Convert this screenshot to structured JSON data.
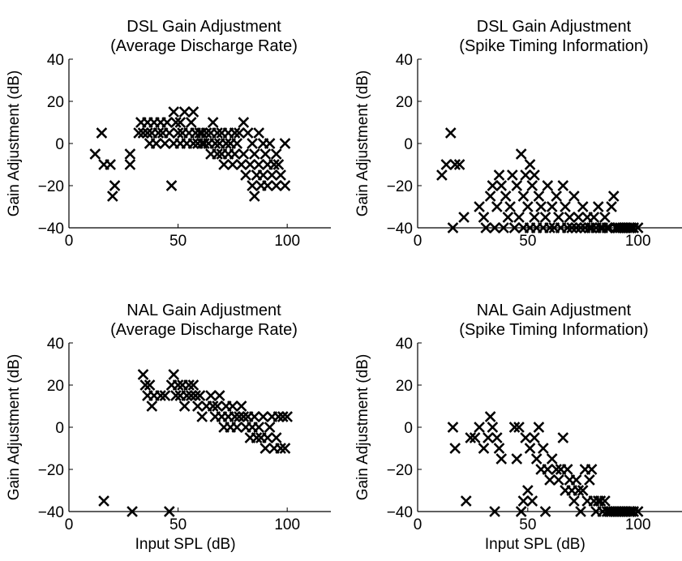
{
  "chart_data": [
    {
      "type": "scatter",
      "title": [
        "DSL Gain Adjustment",
        "(Average Discharge Rate)"
      ],
      "xlabel": "",
      "ylabel": "Gain Adjustment (dB)",
      "xlim": [
        0,
        120
      ],
      "ylim": [
        -40,
        40
      ],
      "xticks": [
        0,
        50,
        100
      ],
      "yticks": [
        -40,
        -20,
        0,
        20,
        40
      ],
      "marker": "x",
      "points": [
        [
          12,
          -5
        ],
        [
          15,
          5
        ],
        [
          16,
          -10
        ],
        [
          19,
          -10
        ],
        [
          20,
          -25
        ],
        [
          21,
          -20
        ],
        [
          28,
          -5
        ],
        [
          28,
          -10
        ],
        [
          32,
          5
        ],
        [
          33,
          10
        ],
        [
          34,
          5
        ],
        [
          36,
          5
        ],
        [
          36,
          10
        ],
        [
          37,
          0
        ],
        [
          38,
          5
        ],
        [
          39,
          10
        ],
        [
          40,
          0
        ],
        [
          41,
          5
        ],
        [
          42,
          10
        ],
        [
          43,
          5
        ],
        [
          44,
          0
        ],
        [
          45,
          10
        ],
        [
          46,
          5
        ],
        [
          47,
          -20
        ],
        [
          48,
          0
        ],
        [
          48,
          15
        ],
        [
          49,
          10
        ],
        [
          50,
          5
        ],
        [
          51,
          0
        ],
        [
          51,
          10
        ],
        [
          52,
          5
        ],
        [
          53,
          15
        ],
        [
          54,
          0
        ],
        [
          55,
          5
        ],
        [
          56,
          10
        ],
        [
          57,
          15
        ],
        [
          57,
          0
        ],
        [
          58,
          5
        ],
        [
          59,
          0
        ],
        [
          60,
          5
        ],
        [
          61,
          0
        ],
        [
          61,
          5
        ],
        [
          62,
          0
        ],
        [
          63,
          5
        ],
        [
          64,
          0
        ],
        [
          65,
          -5
        ],
        [
          65,
          5
        ],
        [
          66,
          10
        ],
        [
          67,
          0
        ],
        [
          68,
          -5
        ],
        [
          68,
          5
        ],
        [
          69,
          0
        ],
        [
          70,
          -5
        ],
        [
          70,
          5
        ],
        [
          71,
          -10
        ],
        [
          72,
          0
        ],
        [
          73,
          -5
        ],
        [
          73,
          5
        ],
        [
          74,
          0
        ],
        [
          75,
          -10
        ],
        [
          76,
          5
        ],
        [
          76,
          -5
        ],
        [
          77,
          0
        ],
        [
          78,
          5
        ],
        [
          79,
          -10
        ],
        [
          80,
          -5
        ],
        [
          80,
          10
        ],
        [
          81,
          -15
        ],
        [
          82,
          5
        ],
        [
          83,
          -10
        ],
        [
          84,
          -20
        ],
        [
          84,
          0
        ],
        [
          85,
          -25
        ],
        [
          85,
          -5
        ],
        [
          86,
          -15
        ],
        [
          87,
          5
        ],
        [
          87,
          -10
        ],
        [
          88,
          -20
        ],
        [
          89,
          0
        ],
        [
          89,
          -15
        ],
        [
          90,
          -5
        ],
        [
          91,
          -10
        ],
        [
          91,
          -20
        ],
        [
          92,
          0
        ],
        [
          93,
          -15
        ],
        [
          94,
          -10
        ],
        [
          95,
          -5
        ],
        [
          95,
          -20
        ],
        [
          96,
          -10
        ],
        [
          97,
          -15
        ],
        [
          99,
          0
        ],
        [
          99,
          -20
        ]
      ]
    },
    {
      "type": "scatter",
      "title": [
        "DSL Gain Adjustment",
        "(Spike Timing Information)"
      ],
      "xlabel": "",
      "ylabel": "Gain Adjustment (dB)",
      "xlim": [
        0,
        120
      ],
      "ylim": [
        -40,
        40
      ],
      "xticks": [
        0,
        50,
        100
      ],
      "yticks": [
        -40,
        -20,
        0,
        20,
        40
      ],
      "marker": "x",
      "points": [
        [
          11,
          -15
        ],
        [
          13,
          -10
        ],
        [
          15,
          5
        ],
        [
          16,
          -40
        ],
        [
          17,
          -10
        ],
        [
          19,
          -10
        ],
        [
          21,
          -35
        ],
        [
          28,
          -30
        ],
        [
          30,
          -35
        ],
        [
          31,
          -40
        ],
        [
          33,
          -25
        ],
        [
          34,
          -20
        ],
        [
          35,
          -40
        ],
        [
          36,
          -30
        ],
        [
          37,
          -15
        ],
        [
          38,
          -20
        ],
        [
          39,
          -40
        ],
        [
          40,
          -25
        ],
        [
          41,
          -35
        ],
        [
          42,
          -30
        ],
        [
          43,
          -15
        ],
        [
          44,
          -40
        ],
        [
          45,
          -20
        ],
        [
          46,
          -35
        ],
        [
          47,
          -5
        ],
        [
          48,
          -25
        ],
        [
          48,
          -40
        ],
        [
          49,
          -15
        ],
        [
          50,
          -30
        ],
        [
          51,
          -40
        ],
        [
          51,
          -10
        ],
        [
          52,
          -20
        ],
        [
          53,
          -35
        ],
        [
          53,
          -15
        ],
        [
          54,
          -40
        ],
        [
          55,
          -25
        ],
        [
          56,
          -30
        ],
        [
          57,
          -40
        ],
        [
          58,
          -35
        ],
        [
          59,
          -20
        ],
        [
          60,
          -40
        ],
        [
          61,
          -30
        ],
        [
          62,
          -40
        ],
        [
          63,
          -25
        ],
        [
          64,
          -35
        ],
        [
          65,
          -40
        ],
        [
          66,
          -20
        ],
        [
          67,
          -30
        ],
        [
          68,
          -40
        ],
        [
          69,
          -35
        ],
        [
          70,
          -40
        ],
        [
          71,
          -25
        ],
        [
          72,
          -40
        ],
        [
          73,
          -35
        ],
        [
          74,
          -40
        ],
        [
          75,
          -30
        ],
        [
          76,
          -40
        ],
        [
          77,
          -35
        ],
        [
          78,
          -40
        ],
        [
          79,
          -40
        ],
        [
          80,
          -35
        ],
        [
          81,
          -40
        ],
        [
          82,
          -30
        ],
        [
          83,
          -40
        ],
        [
          84,
          -40
        ],
        [
          85,
          -35
        ],
        [
          86,
          -40
        ],
        [
          87,
          -40
        ],
        [
          88,
          -30
        ],
        [
          89,
          -25
        ],
        [
          90,
          -40
        ],
        [
          91,
          -40
        ],
        [
          92,
          -40
        ],
        [
          93,
          -40
        ],
        [
          94,
          -40
        ],
        [
          95,
          -40
        ],
        [
          96,
          -40
        ],
        [
          97,
          -40
        ],
        [
          98,
          -40
        ],
        [
          100,
          -40
        ]
      ]
    },
    {
      "type": "scatter",
      "title": [
        "NAL Gain Adjustment",
        "(Average Discharge Rate)"
      ],
      "xlabel": "Input SPL (dB)",
      "ylabel": "Gain Adjustment (dB)",
      "xlim": [
        0,
        120
      ],
      "ylim": [
        -40,
        40
      ],
      "xticks": [
        0,
        50,
        100
      ],
      "yticks": [
        -40,
        -20,
        0,
        20,
        40
      ],
      "marker": "x",
      "points": [
        [
          16,
          -35
        ],
        [
          29,
          -40
        ],
        [
          34,
          25
        ],
        [
          35,
          20
        ],
        [
          36,
          15
        ],
        [
          37,
          20
        ],
        [
          38,
          10
        ],
        [
          39,
          15
        ],
        [
          42,
          15
        ],
        [
          44,
          15
        ],
        [
          46,
          -40
        ],
        [
          47,
          20
        ],
        [
          48,
          25
        ],
        [
          49,
          15
        ],
        [
          50,
          20
        ],
        [
          51,
          15
        ],
        [
          52,
          20
        ],
        [
          53,
          10
        ],
        [
          54,
          15
        ],
        [
          55,
          20
        ],
        [
          56,
          15
        ],
        [
          57,
          20
        ],
        [
          58,
          15
        ],
        [
          59,
          10
        ],
        [
          60,
          15
        ],
        [
          61,
          5
        ],
        [
          63,
          10
        ],
        [
          65,
          15
        ],
        [
          66,
          10
        ],
        [
          67,
          5
        ],
        [
          68,
          10
        ],
        [
          69,
          15
        ],
        [
          70,
          5
        ],
        [
          71,
          0
        ],
        [
          72,
          10
        ],
        [
          73,
          5
        ],
        [
          74,
          0
        ],
        [
          75,
          10
        ],
        [
          76,
          5
        ],
        [
          77,
          0
        ],
        [
          78,
          5
        ],
        [
          79,
          10
        ],
        [
          80,
          5
        ],
        [
          81,
          0
        ],
        [
          82,
          5
        ],
        [
          83,
          -5
        ],
        [
          84,
          0
        ],
        [
          85,
          5
        ],
        [
          86,
          -5
        ],
        [
          87,
          0
        ],
        [
          88,
          -5
        ],
        [
          89,
          5
        ],
        [
          90,
          -10
        ],
        [
          91,
          -5
        ],
        [
          92,
          0
        ],
        [
          93,
          5
        ],
        [
          94,
          -10
        ],
        [
          95,
          -5
        ],
        [
          96,
          5
        ],
        [
          97,
          -10
        ],
        [
          98,
          5
        ],
        [
          99,
          -10
        ],
        [
          100,
          5
        ]
      ]
    },
    {
      "type": "scatter",
      "title": [
        "NAL Gain Adjustment",
        "(Spike Timing Information)"
      ],
      "xlabel": "Input SPL (dB)",
      "ylabel": "Gain Adjustment (dB)",
      "xlim": [
        0,
        120
      ],
      "ylim": [
        -40,
        40
      ],
      "xticks": [
        0,
        50,
        100
      ],
      "yticks": [
        -40,
        -20,
        0,
        20,
        40
      ],
      "marker": "x",
      "points": [
        [
          16,
          0
        ],
        [
          17,
          -10
        ],
        [
          22,
          -35
        ],
        [
          24,
          -5
        ],
        [
          26,
          -5
        ],
        [
          28,
          0
        ],
        [
          30,
          -10
        ],
        [
          32,
          -5
        ],
        [
          33,
          5
        ],
        [
          34,
          0
        ],
        [
          35,
          -40
        ],
        [
          36,
          -5
        ],
        [
          37,
          -10
        ],
        [
          38,
          -15
        ],
        [
          44,
          0
        ],
        [
          45,
          -15
        ],
        [
          46,
          0
        ],
        [
          47,
          -40
        ],
        [
          48,
          -35
        ],
        [
          49,
          -5
        ],
        [
          50,
          -30
        ],
        [
          51,
          -10
        ],
        [
          52,
          -35
        ],
        [
          53,
          -5
        ],
        [
          54,
          -15
        ],
        [
          55,
          0
        ],
        [
          56,
          -20
        ],
        [
          57,
          -10
        ],
        [
          58,
          -40
        ],
        [
          59,
          -20
        ],
        [
          60,
          -25
        ],
        [
          61,
          -15
        ],
        [
          63,
          -20
        ],
        [
          64,
          -25
        ],
        [
          65,
          -20
        ],
        [
          66,
          -5
        ],
        [
          67,
          -30
        ],
        [
          68,
          -20
        ],
        [
          69,
          -25
        ],
        [
          70,
          -30
        ],
        [
          71,
          -35
        ],
        [
          72,
          -25
        ],
        [
          73,
          -30
        ],
        [
          74,
          -40
        ],
        [
          75,
          -30
        ],
        [
          76,
          -20
        ],
        [
          77,
          -35
        ],
        [
          78,
          -25
        ],
        [
          79,
          -20
        ],
        [
          80,
          -35
        ],
        [
          81,
          -40
        ],
        [
          82,
          -35
        ],
        [
          83,
          -35
        ],
        [
          84,
          -40
        ],
        [
          85,
          -35
        ],
        [
          86,
          -40
        ],
        [
          87,
          -40
        ],
        [
          88,
          -40
        ],
        [
          89,
          -40
        ],
        [
          90,
          -40
        ],
        [
          91,
          -40
        ],
        [
          92,
          -40
        ],
        [
          93,
          -40
        ],
        [
          94,
          -40
        ],
        [
          95,
          -40
        ],
        [
          96,
          -40
        ],
        [
          97,
          -40
        ],
        [
          98,
          -40
        ],
        [
          100,
          -40
        ]
      ]
    }
  ]
}
